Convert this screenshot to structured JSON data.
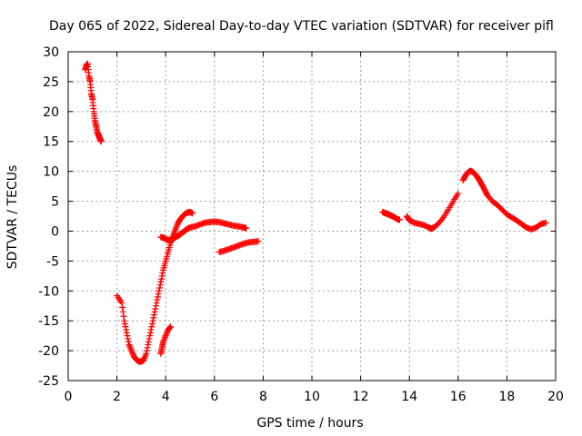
{
  "chart_data": {
    "type": "scatter",
    "title": "Day 065 of 2022, Sidereal Day-to-day VTEC variation (SDTVAR) for receiver pifl",
    "xlabel": "GPS time / hours",
    "ylabel": "SDTVAR / TECUs",
    "xlim": [
      0,
      20
    ],
    "ylim": [
      -25,
      30
    ],
    "x_ticks": [
      "0",
      "2",
      "4",
      "6",
      "8",
      "10",
      "12",
      "14",
      "16",
      "18",
      "20"
    ],
    "y_ticks": [
      "30",
      "25",
      "20",
      "15",
      "10",
      "5",
      "0",
      "-5",
      "-10",
      "-15",
      "-20",
      "-25"
    ],
    "grid": true,
    "marker": "plus",
    "color": "#ff0000",
    "segments": [
      [
        [
          0.7,
          27
        ],
        [
          0.75,
          27.8
        ],
        [
          0.8,
          28
        ],
        [
          0.85,
          26
        ],
        [
          0.9,
          25
        ],
        [
          0.95,
          23
        ],
        [
          1.0,
          22
        ],
        [
          1.05,
          20
        ],
        [
          1.1,
          18.5
        ],
        [
          1.15,
          17.5
        ],
        [
          1.2,
          16.5
        ],
        [
          1.25,
          16
        ],
        [
          1.3,
          15.5
        ],
        [
          1.35,
          15
        ]
      ],
      [
        [
          2.0,
          -10.8
        ],
        [
          2.2,
          -12
        ],
        [
          2.3,
          -15
        ],
        [
          2.4,
          -17
        ],
        [
          2.5,
          -19
        ],
        [
          2.6,
          -20
        ],
        [
          2.7,
          -21
        ],
        [
          2.8,
          -21.5
        ],
        [
          2.9,
          -21.8
        ],
        [
          3.0,
          -21.8
        ],
        [
          3.1,
          -21.6
        ],
        [
          3.2,
          -20.5
        ],
        [
          3.3,
          -18.5
        ],
        [
          3.4,
          -16.5
        ],
        [
          3.5,
          -14.5
        ],
        [
          3.6,
          -12.5
        ],
        [
          3.7,
          -10.5
        ],
        [
          3.8,
          -8.5
        ],
        [
          3.9,
          -6.5
        ],
        [
          4.0,
          -5
        ],
        [
          4.1,
          -3.5
        ],
        [
          4.2,
          -2
        ],
        [
          4.3,
          -0.8
        ],
        [
          4.4,
          0.3
        ],
        [
          4.5,
          1.3
        ],
        [
          4.6,
          2
        ],
        [
          4.7,
          2.5
        ],
        [
          4.8,
          2.9
        ],
        [
          4.9,
          3.1
        ],
        [
          5.0,
          3.2
        ],
        [
          5.1,
          3.0
        ]
      ],
      [
        [
          3.8,
          -20.5
        ],
        [
          3.85,
          -19.5
        ],
        [
          3.9,
          -18.5
        ],
        [
          4.0,
          -17.5
        ],
        [
          4.1,
          -16.5
        ],
        [
          4.2,
          -16
        ]
      ],
      [
        [
          3.8,
          -1.0
        ],
        [
          3.9,
          -1.1
        ],
        [
          4.0,
          -1.3
        ],
        [
          4.1,
          -1.5
        ],
        [
          4.2,
          -1.5
        ],
        [
          4.3,
          -1.3
        ],
        [
          4.4,
          -1.0
        ],
        [
          4.5,
          -0.8
        ],
        [
          4.6,
          -0.5
        ],
        [
          4.7,
          -0.2
        ],
        [
          4.8,
          0.1
        ],
        [
          4.9,
          0.4
        ],
        [
          5.0,
          0.6
        ],
        [
          5.2,
          0.8
        ],
        [
          5.4,
          1.1
        ],
        [
          5.6,
          1.4
        ],
        [
          5.8,
          1.5
        ],
        [
          6.0,
          1.6
        ],
        [
          6.2,
          1.5
        ],
        [
          6.4,
          1.3
        ],
        [
          6.6,
          1.1
        ],
        [
          6.8,
          0.9
        ],
        [
          7.0,
          0.8
        ],
        [
          7.2,
          0.6
        ],
        [
          7.3,
          0.5
        ]
      ],
      [
        [
          6.2,
          -3.5
        ],
        [
          6.4,
          -3.3
        ],
        [
          6.6,
          -3.0
        ],
        [
          6.8,
          -2.7
        ],
        [
          7.0,
          -2.4
        ],
        [
          7.2,
          -2.1
        ],
        [
          7.4,
          -1.9
        ],
        [
          7.6,
          -1.8
        ],
        [
          7.8,
          -1.7
        ]
      ],
      [
        [
          12.9,
          3.2
        ],
        [
          13.0,
          3.0
        ],
        [
          13.1,
          2.9
        ],
        [
          13.2,
          2.7
        ],
        [
          13.3,
          2.5
        ],
        [
          13.4,
          2.3
        ],
        [
          13.5,
          2.0
        ],
        [
          13.6,
          1.9
        ]
      ],
      [
        [
          13.9,
          2.5
        ],
        [
          14.0,
          1.8
        ],
        [
          14.2,
          1.4
        ],
        [
          14.4,
          1.2
        ],
        [
          14.6,
          1.0
        ],
        [
          14.8,
          0.6
        ],
        [
          14.9,
          0.4
        ],
        [
          15.0,
          0.6
        ],
        [
          15.2,
          1.3
        ],
        [
          15.4,
          2.3
        ],
        [
          15.6,
          3.6
        ],
        [
          15.8,
          5.0
        ],
        [
          16.0,
          6.3
        ]
      ],
      [
        [
          16.2,
          8.5
        ],
        [
          16.3,
          9.3
        ],
        [
          16.4,
          9.8
        ],
        [
          16.5,
          10.1
        ],
        [
          16.6,
          9.9
        ],
        [
          16.7,
          9.5
        ],
        [
          16.8,
          9.0
        ],
        [
          16.9,
          8.3
        ],
        [
          17.0,
          7.6
        ],
        [
          17.1,
          6.8
        ],
        [
          17.2,
          6.0
        ],
        [
          17.4,
          5.0
        ],
        [
          17.6,
          4.4
        ],
        [
          17.8,
          3.6
        ],
        [
          18.0,
          2.8
        ],
        [
          18.2,
          2.3
        ],
        [
          18.4,
          1.8
        ],
        [
          18.6,
          1.2
        ],
        [
          18.8,
          0.6
        ],
        [
          19.0,
          0.3
        ],
        [
          19.2,
          0.6
        ],
        [
          19.4,
          1.2
        ],
        [
          19.6,
          1.4
        ]
      ]
    ]
  }
}
